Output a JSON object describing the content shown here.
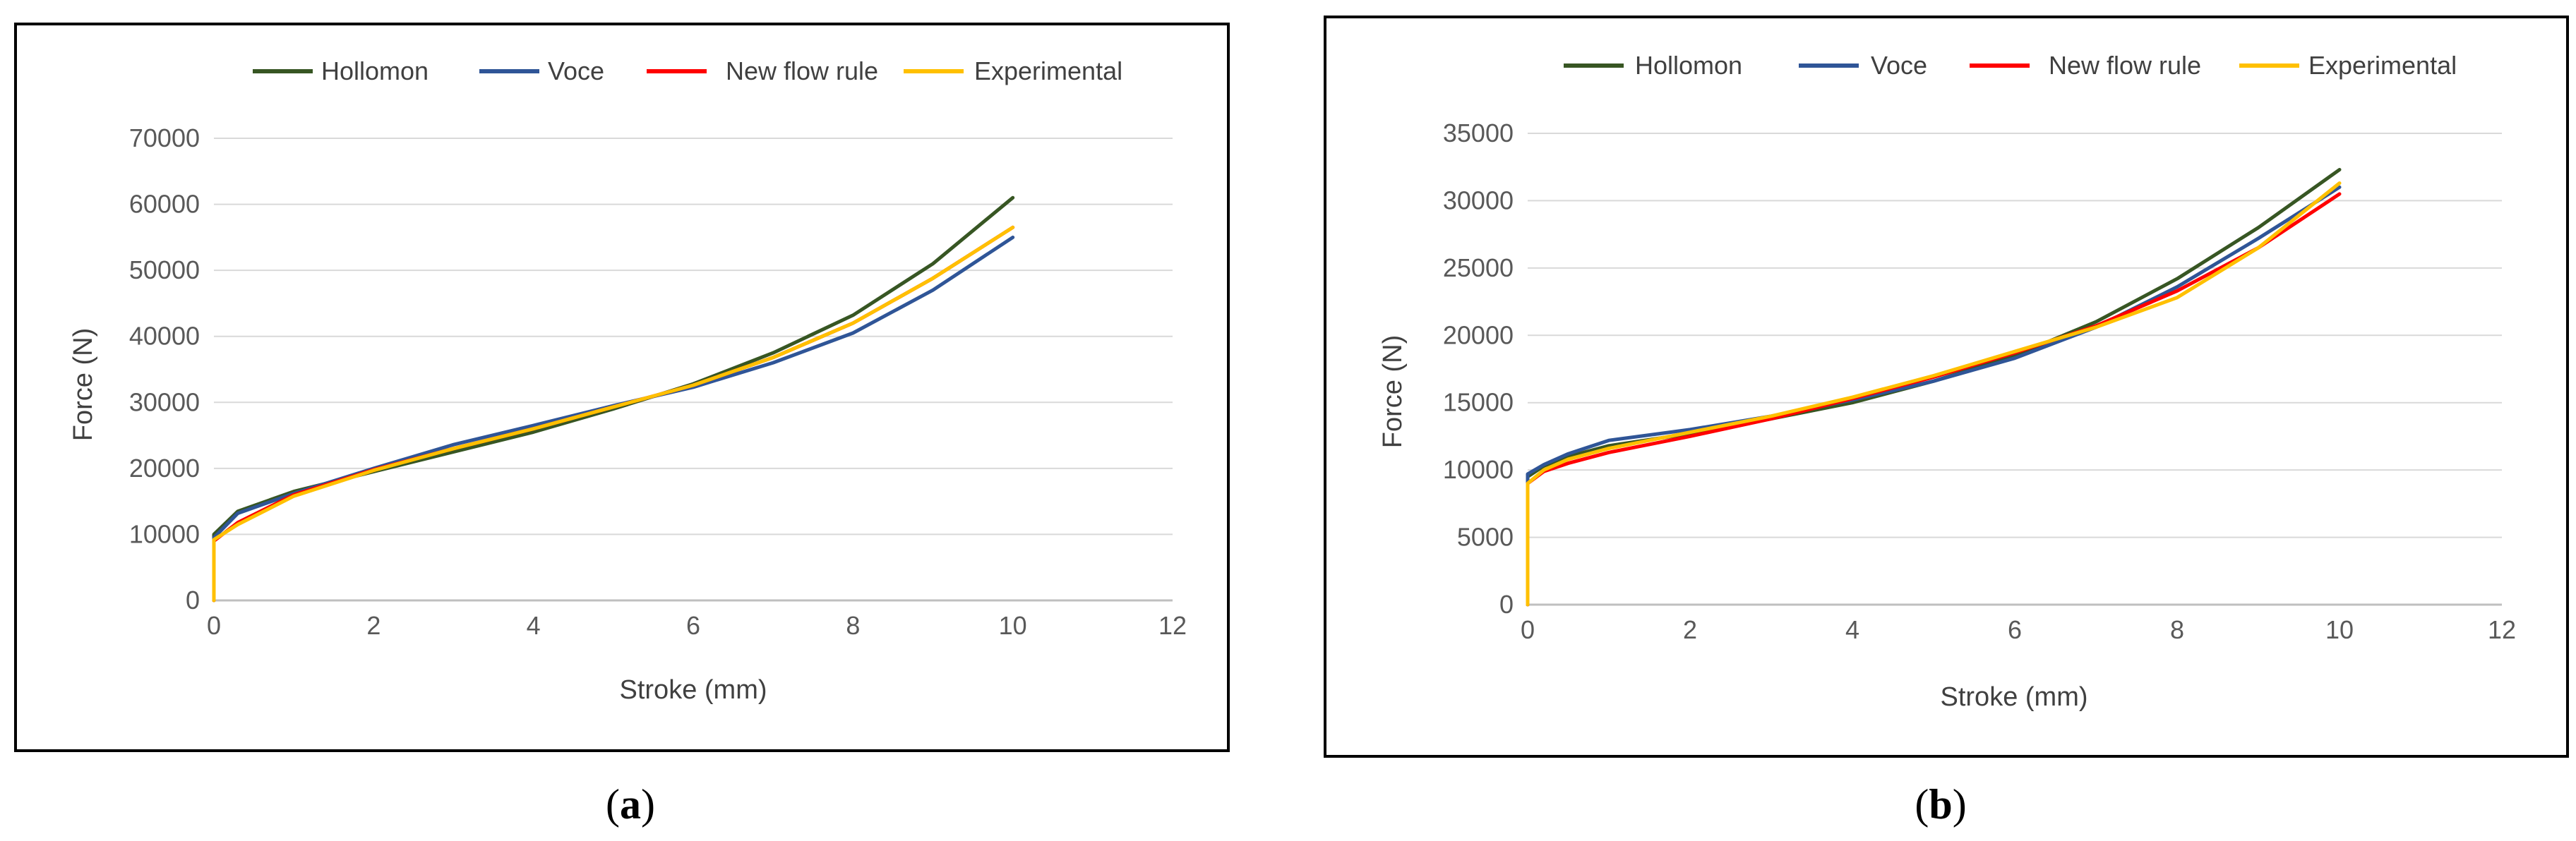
{
  "chart_data": [
    {
      "type": "line",
      "panel_label": "(a)",
      "panel_letter": "a",
      "xlabel": "Stroke (mm)",
      "ylabel": "Force (N)",
      "xlim": [
        0,
        12
      ],
      "ylim": [
        0,
        70000
      ],
      "x_ticks": [
        0,
        2,
        4,
        6,
        8,
        10,
        12
      ],
      "y_ticks": [
        0,
        10000,
        20000,
        30000,
        40000,
        50000,
        60000,
        70000
      ],
      "grid": "horizontal",
      "legend_position": "top",
      "series": [
        {
          "name": "Hollomon",
          "color": "#375623",
          "points": [
            [
              0,
              0
            ],
            [
              0,
              10000
            ],
            [
              0.3,
              13500
            ],
            [
              1,
              16500
            ],
            [
              2,
              19500
            ],
            [
              3,
              22500
            ],
            [
              4,
              25500
            ],
            [
              5,
              29000
            ],
            [
              6,
              32800
            ],
            [
              7,
              37500
            ],
            [
              8,
              43200
            ],
            [
              9,
              51000
            ],
            [
              10,
              61000
            ]
          ]
        },
        {
          "name": "Voce",
          "color": "#2F5597",
          "points": [
            [
              0,
              0
            ],
            [
              0,
              9500
            ],
            [
              0.3,
              13200
            ],
            [
              1,
              16200
            ],
            [
              2,
              20000
            ],
            [
              3,
              23600
            ],
            [
              4,
              26500
            ],
            [
              5,
              29500
            ],
            [
              6,
              32300
            ],
            [
              7,
              36000
            ],
            [
              8,
              40500
            ],
            [
              9,
              47000
            ],
            [
              10,
              55000
            ]
          ]
        },
        {
          "name": "New flow rule",
          "color": "#FF0000",
          "points": [
            [
              0,
              0
            ],
            [
              0,
              9000
            ],
            [
              0.3,
              11800
            ],
            [
              1,
              16000
            ],
            [
              2,
              19800
            ],
            [
              3,
              23000
            ],
            [
              4,
              26000
            ],
            [
              5,
              29300
            ],
            [
              6,
              32600
            ],
            [
              7,
              36800
            ],
            [
              8,
              42000
            ],
            [
              9,
              48800
            ],
            [
              10,
              56500
            ]
          ]
        },
        {
          "name": "Experimental",
          "color": "#FFC000",
          "points": [
            [
              0,
              0
            ],
            [
              0,
              9200
            ],
            [
              0.3,
              11500
            ],
            [
              1,
              15800
            ],
            [
              2,
              19700
            ],
            [
              3,
              23000
            ],
            [
              4,
              26000
            ],
            [
              5,
              29300
            ],
            [
              6,
              32600
            ],
            [
              7,
              36800
            ],
            [
              8,
              42000
            ],
            [
              9,
              48800
            ],
            [
              10,
              56500
            ]
          ]
        }
      ]
    },
    {
      "type": "line",
      "panel_label": "(b)",
      "panel_letter": "b",
      "xlabel": "Stroke (mm)",
      "ylabel": "Force (N)",
      "xlim": [
        0,
        12
      ],
      "ylim": [
        0,
        35000
      ],
      "x_ticks": [
        0,
        2,
        4,
        6,
        8,
        10,
        12
      ],
      "y_ticks": [
        0,
        5000,
        10000,
        15000,
        20000,
        25000,
        30000,
        35000
      ],
      "grid": "horizontal",
      "legend_position": "top",
      "series": [
        {
          "name": "Hollomon",
          "color": "#375623",
          "points": [
            [
              0,
              0
            ],
            [
              0,
              9500
            ],
            [
              0.2,
              10300
            ],
            [
              0.5,
              11000
            ],
            [
              1,
              11800
            ],
            [
              2,
              12700
            ],
            [
              3,
              13800
            ],
            [
              4,
              15000
            ],
            [
              5,
              16600
            ],
            [
              6,
              18500
            ],
            [
              7,
              21000
            ],
            [
              8,
              24200
            ],
            [
              9,
              28000
            ],
            [
              10,
              32300
            ]
          ]
        },
        {
          "name": "Voce",
          "color": "#2F5597",
          "points": [
            [
              0,
              0
            ],
            [
              0,
              9700
            ],
            [
              0.2,
              10400
            ],
            [
              0.5,
              11200
            ],
            [
              1,
              12200
            ],
            [
              2,
              13000
            ],
            [
              3,
              14000
            ],
            [
              4,
              15200
            ],
            [
              5,
              16600
            ],
            [
              6,
              18300
            ],
            [
              7,
              20600
            ],
            [
              8,
              23600
            ],
            [
              9,
              27200
            ],
            [
              10,
              31000
            ]
          ]
        },
        {
          "name": "New flow rule",
          "color": "#FF0000",
          "points": [
            [
              0,
              0
            ],
            [
              0,
              9000
            ],
            [
              0.2,
              9900
            ],
            [
              0.5,
              10500
            ],
            [
              1,
              11300
            ],
            [
              2,
              12500
            ],
            [
              3,
              13800
            ],
            [
              4,
              15300
            ],
            [
              5,
              16900
            ],
            [
              6,
              18700
            ],
            [
              7,
              20700
            ],
            [
              8,
              23300
            ],
            [
              9,
              26500
            ],
            [
              10,
              30500
            ]
          ]
        },
        {
          "name": "Experimental",
          "color": "#FFC000",
          "points": [
            [
              0,
              0
            ],
            [
              0,
              9000
            ],
            [
              0.2,
              10000
            ],
            [
              0.5,
              10800
            ],
            [
              1,
              11600
            ],
            [
              2,
              12800
            ],
            [
              3,
              14000
            ],
            [
              4,
              15400
            ],
            [
              5,
              17000
            ],
            [
              6,
              18800
            ],
            [
              7,
              20600
            ],
            [
              8,
              22800
            ],
            [
              9,
              26500
            ],
            [
              10,
              31300
            ]
          ]
        }
      ]
    }
  ]
}
